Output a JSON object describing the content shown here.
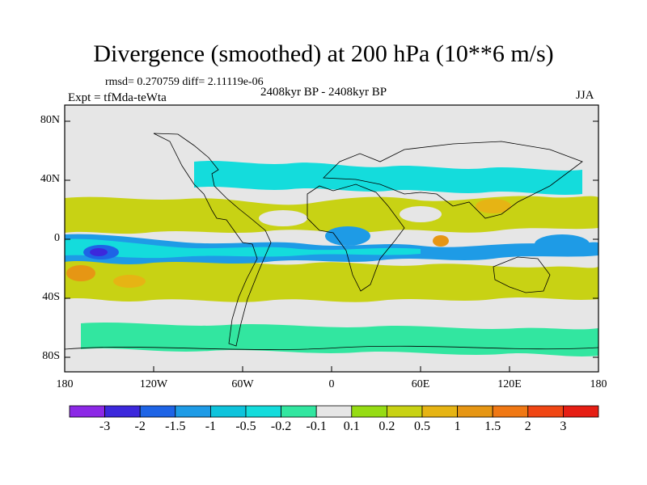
{
  "title": "Divergence (smoothed) at 200 hPa (10**6 m/s)",
  "stats": "rmsd= 0.270759 diff= 2.11119e-06",
  "experiment": "Expt = tfMda-teWta",
  "period": "2408kyr BP - 2408kyr BP",
  "season": "JJA",
  "axes": {
    "lat_ticks": [
      "80N",
      "40N",
      "0",
      "40S",
      "80S"
    ],
    "lon_ticks": [
      "180",
      "120W",
      "60W",
      "0",
      "60E",
      "120E",
      "180"
    ]
  },
  "colorbar": {
    "labels": [
      "-3",
      "-2",
      "-1.5",
      "-1",
      "-0.5",
      "-0.2",
      "-0.1",
      "0.1",
      "0.2",
      "0.5",
      "1",
      "1.5",
      "2",
      "3"
    ],
    "colors": [
      "#8c28e6",
      "#3c28dc",
      "#1e64e6",
      "#1e9be6",
      "#0ec3dc",
      "#14dcdc",
      "#32e6a0",
      "#e6e6e6",
      "#96dc14",
      "#c8d214",
      "#e6b414",
      "#e69614",
      "#f07814",
      "#f04614",
      "#e61e14"
    ]
  },
  "colors": {
    "ocean_background": "#e6e6e6",
    "coastline": "#000000"
  }
}
